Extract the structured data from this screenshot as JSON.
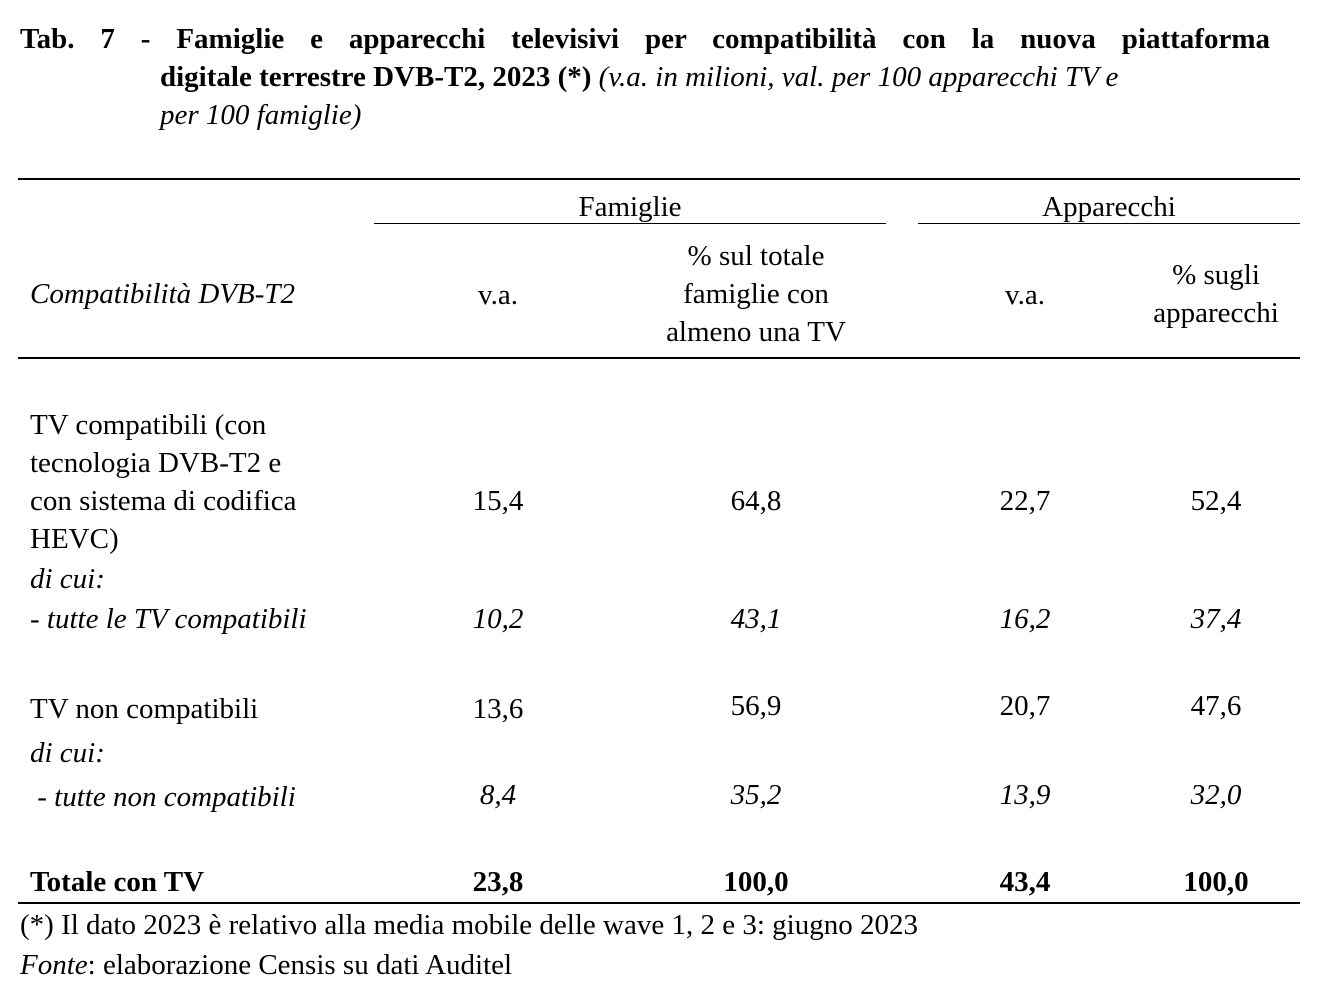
{
  "title": {
    "line1": "Tab. 7 - Famiglie e apparecchi televisivi per compatibilità con la nuova piattaforma",
    "line2_bold": "digitale terrestre DVB-T2, 2023 (*)",
    "line2_italic": " (v.a. in milioni, val. per 100 apparecchi TV e",
    "line3_italic": "per 100 famiglie)"
  },
  "table": {
    "group_headers": [
      "Famiglie",
      "Apparecchi"
    ],
    "columns": [
      "Compatibilità DVB-T2",
      "v.a.",
      "% sul totale famiglie con almeno una TV",
      "v.a.",
      "% sugli apparecchi"
    ],
    "column_lines": {
      "fam_pct": [
        "% sul totale",
        "famiglie con",
        "almeno una TV"
      ],
      "app_pct": [
        "% sugli",
        "apparecchi"
      ]
    },
    "rows": [
      {
        "label_lines": [
          "TV compatibili (con",
          "tecnologia DVB-T2 e",
          "con sistema di codifica",
          "HEVC)"
        ],
        "values": [
          "15,4",
          "64,8",
          "22,7",
          "52,4"
        ],
        "style": "normal"
      },
      {
        "label": "di cui:",
        "style": "italic-label"
      },
      {
        "label": "- tutte le TV compatibili",
        "values": [
          "10,2",
          "43,1",
          "16,2",
          "37,4"
        ],
        "style": "italic"
      },
      {
        "label": "TV non compatibili",
        "values": [
          "13,6",
          "56,9",
          "20,7",
          "47,6"
        ],
        "style": "normal"
      },
      {
        "label": "di cui:",
        "style": "italic-label"
      },
      {
        "label": " - tutte non compatibili",
        "values": [
          "8,4",
          "35,2",
          "13,9",
          "32,0"
        ],
        "style": "italic"
      },
      {
        "label": "Totale con TV",
        "values": [
          "23,8",
          "100,0",
          "43,4",
          "100,0"
        ],
        "style": "bold"
      }
    ]
  },
  "footnotes": {
    "note": "(*) Il dato 2023 è relativo alla media mobile delle wave 1, 2 e 3: giugno 2023",
    "source_label": "Fonte",
    "source_text": ": elaborazione Censis su dati Auditel"
  }
}
